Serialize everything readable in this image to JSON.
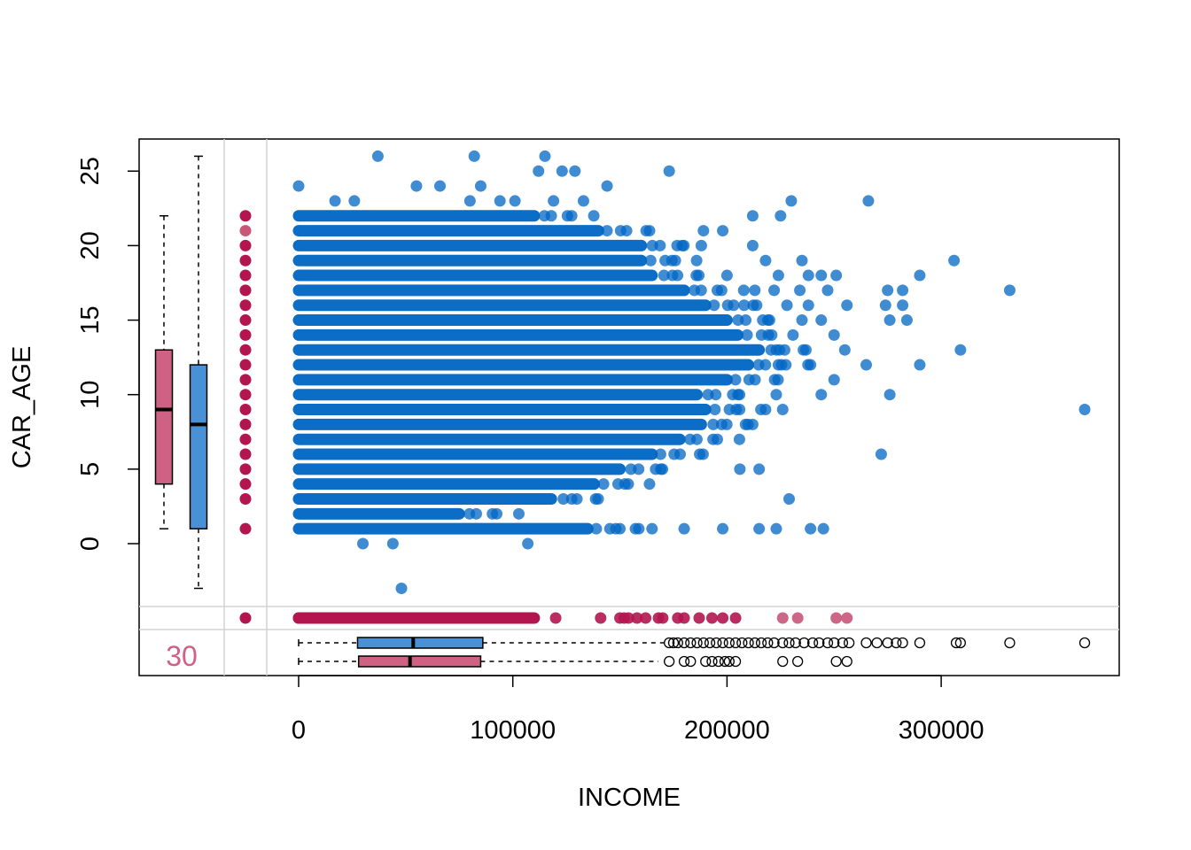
{
  "chart_data": {
    "type": "scatter",
    "title": "",
    "xlabel": "INCOME",
    "ylabel": "CAR_AGE",
    "xlim": [
      -74000,
      381000
    ],
    "ylim": [
      -9,
      27
    ],
    "x_ticks": [
      0,
      100000,
      200000,
      300000
    ],
    "x_tick_labels": [
      "0",
      "100000",
      "200000",
      "300000"
    ],
    "y_ticks": [
      0,
      5,
      10,
      15,
      20,
      25
    ],
    "y_tick_labels": [
      "0",
      "5",
      "10",
      "15",
      "20",
      "25"
    ],
    "grid": false,
    "legend": "none",
    "colors": {
      "observed": "#0066c4",
      "missing": "#b3164f",
      "missing_light": "#c8577a",
      "box_observed": "#4a90d4",
      "box_missing": "#cf6185",
      "divider": "#d3d3d3"
    },
    "missing_count_label": "30",
    "series": [
      {
        "kind": "observed_pairs",
        "dense_rows": [
          {
            "y": 1,
            "x_from": 0,
            "x_to": 135000
          },
          {
            "y": 2,
            "x_from": 0,
            "x_to": 75000
          },
          {
            "y": 3,
            "x_from": 0,
            "x_to": 118000
          },
          {
            "y": 4,
            "x_from": 0,
            "x_to": 138000
          },
          {
            "y": 5,
            "x_from": 0,
            "x_to": 150000
          },
          {
            "y": 6,
            "x_from": 0,
            "x_to": 165000
          },
          {
            "y": 7,
            "x_from": 0,
            "x_to": 178000
          },
          {
            "y": 8,
            "x_from": 0,
            "x_to": 188000
          },
          {
            "y": 9,
            "x_from": 0,
            "x_to": 190000
          },
          {
            "y": 10,
            "x_from": 0,
            "x_to": 186000
          },
          {
            "y": 11,
            "x_from": 0,
            "x_to": 200000
          },
          {
            "y": 12,
            "x_from": 0,
            "x_to": 210000
          },
          {
            "y": 13,
            "x_from": 0,
            "x_to": 215000
          },
          {
            "y": 14,
            "x_from": 0,
            "x_to": 205000
          },
          {
            "y": 15,
            "x_from": 0,
            "x_to": 200000
          },
          {
            "y": 16,
            "x_from": 0,
            "x_to": 190000
          },
          {
            "y": 17,
            "x_from": 0,
            "x_to": 180000
          },
          {
            "y": 18,
            "x_from": 0,
            "x_to": 165000
          },
          {
            "y": 19,
            "x_from": 0,
            "x_to": 160000
          },
          {
            "y": 20,
            "x_from": 0,
            "x_to": 160000
          },
          {
            "y": 21,
            "x_from": 0,
            "x_to": 140000
          },
          {
            "y": 22,
            "x_from": 0,
            "x_to": 110000
          }
        ],
        "points": [
          [
            37000,
            26
          ],
          [
            82000,
            26
          ],
          [
            115000,
            26
          ],
          [
            112000,
            25
          ],
          [
            123000,
            25
          ],
          [
            129000,
            25
          ],
          [
            173000,
            25
          ],
          [
            0,
            24
          ],
          [
            55000,
            24
          ],
          [
            66000,
            24
          ],
          [
            85000,
            24
          ],
          [
            144000,
            24
          ],
          [
            17000,
            23
          ],
          [
            26000,
            23
          ],
          [
            80000,
            23
          ],
          [
            94000,
            23
          ],
          [
            101000,
            23
          ],
          [
            119000,
            23
          ],
          [
            133000,
            23
          ],
          [
            230000,
            23
          ],
          [
            266000,
            23
          ],
          [
            212000,
            22
          ],
          [
            225000,
            22
          ],
          [
            189000,
            21
          ],
          [
            198000,
            21
          ],
          [
            188000,
            20
          ],
          [
            212000,
            20
          ],
          [
            218000,
            19
          ],
          [
            235000,
            19
          ],
          [
            306000,
            19
          ],
          [
            200000,
            18
          ],
          [
            224000,
            18
          ],
          [
            238000,
            18
          ],
          [
            244000,
            18
          ],
          [
            251000,
            18
          ],
          [
            290000,
            18
          ],
          [
            213000,
            17
          ],
          [
            222000,
            17
          ],
          [
            234000,
            17
          ],
          [
            247000,
            17
          ],
          [
            275000,
            17
          ],
          [
            282000,
            17
          ],
          [
            332000,
            17
          ],
          [
            208000,
            16
          ],
          [
            228000,
            16
          ],
          [
            238000,
            16
          ],
          [
            256000,
            16
          ],
          [
            274000,
            16
          ],
          [
            282000,
            16
          ],
          [
            235000,
            15
          ],
          [
            244000,
            15
          ],
          [
            276000,
            15
          ],
          [
            284000,
            15
          ],
          [
            250000,
            14
          ],
          [
            223000,
            13
          ],
          [
            255000,
            13
          ],
          [
            309000,
            13
          ],
          [
            224000,
            12
          ],
          [
            239000,
            12
          ],
          [
            265000,
            12
          ],
          [
            290000,
            12
          ],
          [
            250000,
            11
          ],
          [
            223000,
            10
          ],
          [
            244000,
            10
          ],
          [
            276000,
            10
          ],
          [
            218000,
            9
          ],
          [
            226000,
            9
          ],
          [
            367000,
            9
          ],
          [
            212000,
            8
          ],
          [
            272000,
            6
          ],
          [
            206000,
            5
          ],
          [
            215000,
            5
          ],
          [
            229000,
            3
          ],
          [
            150000,
            1
          ],
          [
            165000,
            1
          ],
          [
            180000,
            1
          ],
          [
            198000,
            1
          ],
          [
            215000,
            1
          ],
          [
            223000,
            1
          ],
          [
            239000,
            1
          ],
          [
            245000,
            1
          ],
          [
            30000,
            0
          ],
          [
            44000,
            0
          ],
          [
            107000,
            0
          ],
          [
            48000,
            -3
          ]
        ]
      },
      {
        "kind": "car_age_missing",
        "y_rug_values": [
          1,
          3,
          4,
          5,
          6,
          7,
          8,
          9,
          10,
          11,
          12,
          13,
          14,
          15,
          16,
          17,
          18,
          19,
          20,
          21,
          22
        ],
        "x_rug_values": [
          0,
          120000,
          141000,
          150000,
          152000,
          154000,
          158000,
          162000,
          168000,
          170000,
          177000,
          180000,
          187000,
          193000,
          198000,
          204000,
          226000,
          233000,
          251000,
          256000
        ]
      },
      {
        "kind": "income_missing_box",
        "box": {
          "min": 1,
          "q1": 4,
          "median": 9,
          "q3": 13,
          "max": 22
        }
      },
      {
        "kind": "income_observed_box",
        "box": {
          "min": -3,
          "q1": 1,
          "median": 8,
          "q3": 12,
          "max": 26
        }
      },
      {
        "kind": "car_age_observed_income_box",
        "box": {
          "min": 0,
          "q1": 27500,
          "median": 53500,
          "q3": 86000,
          "whisker_max": 173000
        },
        "outliers": [
          173000,
          175000,
          177000,
          180000,
          183000,
          186000,
          189000,
          192000,
          195000,
          198000,
          201000,
          204000,
          207000,
          210000,
          213000,
          216000,
          219000,
          222000,
          226000,
          229000,
          232000,
          236000,
          240000,
          243000,
          247000,
          250000,
          254000,
          257000,
          265000,
          270000,
          275000,
          279000,
          282000,
          290000,
          307000,
          309000,
          332000,
          367000
        ]
      },
      {
        "kind": "car_age_missing_income_box",
        "box": {
          "min": 0,
          "q1": 28000,
          "median": 52000,
          "q3": 85000,
          "whisker_max": 168000
        },
        "outliers": [
          173000,
          180000,
          183000,
          190000,
          193000,
          196000,
          199000,
          201000,
          204000,
          226000,
          233000,
          251000,
          256000
        ]
      }
    ]
  }
}
